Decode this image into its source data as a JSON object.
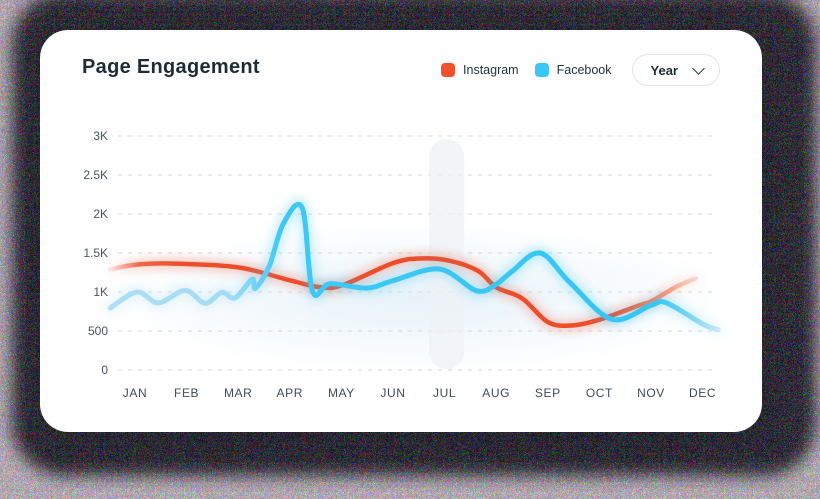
{
  "card": {
    "title": "Page Engagement"
  },
  "legend": [
    {
      "label": "Instagram",
      "color": "#f0502c"
    },
    {
      "label": "Facebook",
      "color": "#3bc7f3"
    }
  ],
  "filter": {
    "label": "Year",
    "icon": "chevron-down-icon"
  },
  "colors": {
    "card_background": "#ffffff",
    "page_shadow": "#142328",
    "title_text": "#1e2c35",
    "axis_text": "#49545c",
    "gridline": "#d3d8dc",
    "highlight_band": "#eef2f6"
  },
  "chart_data": {
    "type": "line",
    "title": "Page Engagement",
    "x_categories": [
      "JAN",
      "FEB",
      "MAR",
      "APR",
      "MAY",
      "JUN",
      "JUL",
      "AUG",
      "SEP",
      "OCT",
      "NOV",
      "DEC"
    ],
    "y_tick_labels": [
      "3K",
      "2.5K",
      "2K",
      "1.5K",
      "1K",
      "500",
      "0"
    ],
    "y_tick_values": [
      3000,
      2500,
      2000,
      1500,
      1000,
      500,
      0
    ],
    "ylim": [
      0,
      3000
    ],
    "grid": "horizontal-dashed",
    "legend_position": "top-right",
    "highlight_band": {
      "x_from_month": 5.7,
      "x_to_month": 6.38
    },
    "monthly_summary": {
      "Instagram": [
        1350,
        1360,
        1315,
        1150,
        1090,
        1370,
        1395,
        1060,
        615,
        645,
        880,
        1160
      ],
      "Facebook": [
        990,
        1020,
        950,
        1950,
        1100,
        1145,
        1270,
        1100,
        1470,
        700,
        830,
        600
      ]
    },
    "series": [
      {
        "name": "Instagram",
        "color": "#ee4d2a",
        "width": 4.5,
        "points": [
          [
            -0.48,
            1290
          ],
          [
            0,
            1350
          ],
          [
            0.7,
            1365
          ],
          [
            2,
            1315
          ],
          [
            3,
            1150
          ],
          [
            3.6,
            1060
          ],
          [
            4.03,
            1090
          ],
          [
            5,
            1370
          ],
          [
            5.55,
            1430
          ],
          [
            6.1,
            1400
          ],
          [
            6.65,
            1270
          ],
          [
            7.0,
            1060
          ],
          [
            7.5,
            920
          ],
          [
            8.0,
            615
          ],
          [
            8.45,
            570
          ],
          [
            9.0,
            645
          ],
          [
            9.79,
            833
          ],
          [
            10.0,
            880
          ],
          [
            10.5,
            1070
          ],
          [
            10.87,
            1175
          ]
        ],
        "gradient_stops": [
          {
            "offset": 0,
            "color": "#f0512f",
            "opacity": 0.12
          },
          {
            "offset": 0.05,
            "color": "#f0512f",
            "opacity": 0.85
          },
          {
            "offset": 0.12,
            "color": "#ee4d2a",
            "opacity": 1
          },
          {
            "offset": 0.86,
            "color": "#ee4d2a",
            "opacity": 1
          },
          {
            "offset": 0.95,
            "color": "#f4886a",
            "opacity": 0.85
          },
          {
            "offset": 1,
            "color": "#f8b29c",
            "opacity": 0.45
          }
        ]
      },
      {
        "name": "Facebook",
        "color": "#38c6f4",
        "color_light": "#abdef4",
        "width": 5,
        "points": [
          [
            -0.48,
            795
          ],
          [
            0.04,
            1000
          ],
          [
            0.45,
            860
          ],
          [
            0.97,
            1020
          ],
          [
            1.36,
            855
          ],
          [
            1.68,
            995
          ],
          [
            1.94,
            925
          ],
          [
            2.27,
            1165
          ],
          [
            2.33,
            1045
          ],
          [
            2.6,
            1330
          ],
          [
            2.87,
            1870
          ],
          [
            3.24,
            2080
          ],
          [
            3.44,
            1010
          ],
          [
            3.78,
            1105
          ],
          [
            4.49,
            1050
          ],
          [
            5.0,
            1145
          ],
          [
            5.9,
            1295
          ],
          [
            6.62,
            1015
          ],
          [
            7.0,
            1100
          ],
          [
            7.3,
            1260
          ],
          [
            7.85,
            1500
          ],
          [
            8.43,
            1120
          ],
          [
            9.24,
            650
          ],
          [
            10.0,
            830
          ],
          [
            10.3,
            860
          ],
          [
            11.0,
            590
          ],
          [
            11.3,
            515
          ]
        ],
        "gradient_stops": [
          {
            "offset": 0,
            "color": "#abdef4",
            "opacity": 0.95
          },
          {
            "offset": 0.2,
            "color": "#a3dcf4",
            "opacity": 1
          },
          {
            "offset": 0.28,
            "color": "#3fc8f5",
            "opacity": 1
          },
          {
            "offset": 0.9,
            "color": "#35c6f4",
            "opacity": 1
          },
          {
            "offset": 0.97,
            "color": "#8ed8f2",
            "opacity": 0.95
          },
          {
            "offset": 1,
            "color": "#bce6f6",
            "opacity": 0.8
          }
        ]
      }
    ]
  }
}
